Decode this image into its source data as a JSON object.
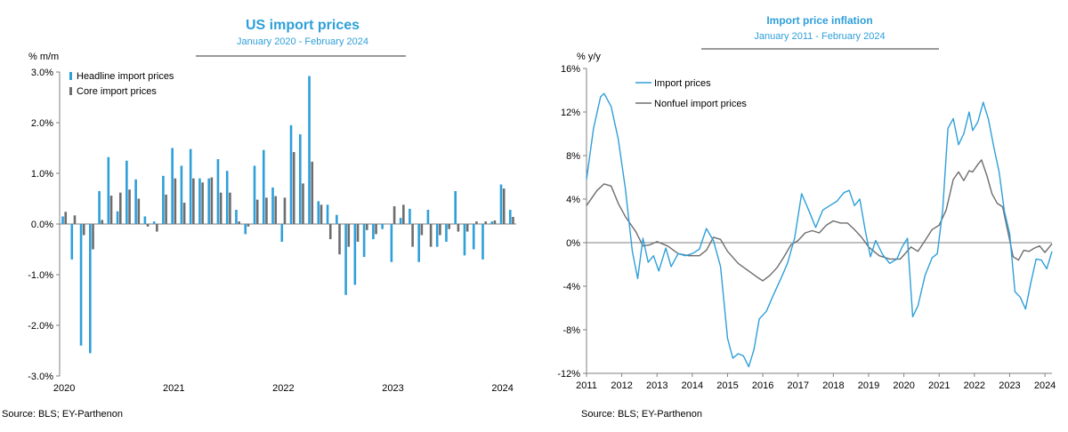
{
  "colors": {
    "headline": "#2e9fd9",
    "core": "#6d6d6d",
    "title": "#2e9fd9",
    "axis": "#808080"
  },
  "left": {
    "title": "US import prices",
    "subtitle": "January 2020 - February 2024",
    "unit_label": "% m/m",
    "source": "Source: BLS; EY-Parthenon"
  },
  "right": {
    "title": "Import price inflation",
    "subtitle": "January 2011 - February 2024",
    "unit_label": "% y/y",
    "source": "Source: BLS; EY-Parthenon"
  },
  "chart_data": [
    {
      "type": "bar",
      "title": "US import prices",
      "subtitle": "January 2020 - February 2024",
      "ylabel": "% m/m",
      "ylim": [
        -3.0,
        3.0
      ],
      "yticks": [
        -3.0,
        -2.0,
        -1.0,
        0.0,
        1.0,
        2.0,
        3.0
      ],
      "ytick_labels": [
        "-3.0%",
        "-2.0%",
        "-1.0%",
        "0.0%",
        "1.0%",
        "2.0%",
        "3.0%"
      ],
      "xtick_labels": [
        "2020",
        "2021",
        "2022",
        "2023",
        "2024"
      ],
      "legend_position": "top-left",
      "categories": [
        "2020-01",
        "2020-02",
        "2020-03",
        "2020-04",
        "2020-05",
        "2020-06",
        "2020-07",
        "2020-08",
        "2020-09",
        "2020-10",
        "2020-11",
        "2020-12",
        "2021-01",
        "2021-02",
        "2021-03",
        "2021-04",
        "2021-05",
        "2021-06",
        "2021-07",
        "2021-08",
        "2021-09",
        "2021-10",
        "2021-11",
        "2021-12",
        "2022-01",
        "2022-02",
        "2022-03",
        "2022-04",
        "2022-05",
        "2022-06",
        "2022-07",
        "2022-08",
        "2022-09",
        "2022-10",
        "2022-11",
        "2022-12",
        "2023-01",
        "2023-02",
        "2023-03",
        "2023-04",
        "2023-05",
        "2023-06",
        "2023-07",
        "2023-08",
        "2023-09",
        "2023-10",
        "2023-11",
        "2023-12",
        "2024-01",
        "2024-02"
      ],
      "series": [
        {
          "name": "Headline import prices",
          "values": [
            0.15,
            -0.7,
            -2.4,
            -2.55,
            0.65,
            1.32,
            0.25,
            1.25,
            0.88,
            0.15,
            0.05,
            0.95,
            1.5,
            1.15,
            1.48,
            0.9,
            0.9,
            1.28,
            1.05,
            0.28,
            -0.2,
            1.15,
            1.46,
            0.72,
            -0.35,
            1.95,
            1.77,
            2.92,
            0.45,
            0.38,
            0.18,
            -1.4,
            -1.2,
            -0.65,
            -0.3,
            -0.1,
            -0.75,
            0.12,
            0.3,
            -0.75,
            0.28,
            -0.45,
            -0.35,
            0.65,
            -0.62,
            -0.5,
            -0.7,
            0.05,
            0.78,
            0.28
          ],
          "color": "#2e9fd9"
        },
        {
          "name": "Core import prices",
          "values": [
            0.24,
            0.17,
            -0.22,
            -0.5,
            0.08,
            0.56,
            0.62,
            0.68,
            0.5,
            -0.05,
            -0.15,
            0.58,
            0.9,
            0.42,
            0.9,
            0.82,
            0.92,
            0.62,
            0.62,
            0.05,
            -0.05,
            0.48,
            0.52,
            0.55,
            0.52,
            1.42,
            0.8,
            1.23,
            0.38,
            -0.3,
            -0.6,
            -0.45,
            -0.35,
            -0.12,
            -0.2,
            0.0,
            0.35,
            0.38,
            -0.45,
            -0.22,
            -0.45,
            -0.22,
            -0.1,
            -0.15,
            -0.15,
            0.05,
            0.05,
            0.07,
            0.7,
            0.14
          ],
          "color": "#6d6d6d"
        }
      ]
    },
    {
      "type": "line",
      "title": "Import price inflation",
      "subtitle": "January 2011 - February 2024",
      "ylabel": "% y/y",
      "ylim": [
        -12,
        16
      ],
      "yticks": [
        -12,
        -8,
        -4,
        0,
        4,
        8,
        12,
        16
      ],
      "ytick_labels": [
        "-12%",
        "-8%",
        "-4%",
        "0%",
        "4%",
        "8%",
        "12%",
        "16%"
      ],
      "xlim": [
        2011,
        2024.2
      ],
      "xtick_values": [
        2011,
        2012,
        2013,
        2014,
        2015,
        2016,
        2017,
        2018,
        2019,
        2020,
        2021,
        2022,
        2023,
        2024
      ],
      "xtick_labels": [
        "2011",
        "2012",
        "2013",
        "2014",
        "2015",
        "2016",
        "2017",
        "2018",
        "2019",
        "2020",
        "2021",
        "2022",
        "2023",
        "2024"
      ],
      "legend_position": "top-left",
      "series": [
        {
          "name": "Import prices",
          "color": "#2e9fd9",
          "points": [
            [
              2011.0,
              5.8
            ],
            [
              2011.2,
              10.5
            ],
            [
              2011.4,
              13.4
            ],
            [
              2011.5,
              13.7
            ],
            [
              2011.7,
              12.5
            ],
            [
              2011.9,
              9.5
            ],
            [
              2012.1,
              5.0
            ],
            [
              2012.3,
              -0.8
            ],
            [
              2012.45,
              -3.3
            ],
            [
              2012.6,
              0.4
            ],
            [
              2012.75,
              -1.8
            ],
            [
              2012.9,
              -1.2
            ],
            [
              2013.05,
              -2.6
            ],
            [
              2013.25,
              -0.5
            ],
            [
              2013.4,
              -2.2
            ],
            [
              2013.6,
              -1.0
            ],
            [
              2013.8,
              -1.2
            ],
            [
              2014.0,
              -1.0
            ],
            [
              2014.2,
              -0.6
            ],
            [
              2014.4,
              1.3
            ],
            [
              2014.6,
              0.2
            ],
            [
              2014.8,
              -2.2
            ],
            [
              2015.0,
              -8.8
            ],
            [
              2015.15,
              -10.6
            ],
            [
              2015.3,
              -10.2
            ],
            [
              2015.45,
              -10.4
            ],
            [
              2015.6,
              -11.4
            ],
            [
              2015.75,
              -9.8
            ],
            [
              2015.9,
              -7.0
            ],
            [
              2016.1,
              -6.3
            ],
            [
              2016.3,
              -4.8
            ],
            [
              2016.5,
              -3.4
            ],
            [
              2016.7,
              -1.9
            ],
            [
              2016.9,
              0.4
            ],
            [
              2017.1,
              4.5
            ],
            [
              2017.3,
              3.0
            ],
            [
              2017.5,
              1.4
            ],
            [
              2017.7,
              3.0
            ],
            [
              2017.9,
              3.4
            ],
            [
              2018.1,
              3.8
            ],
            [
              2018.3,
              4.6
            ],
            [
              2018.45,
              4.8
            ],
            [
              2018.6,
              3.4
            ],
            [
              2018.75,
              4.0
            ],
            [
              2018.9,
              1.2
            ],
            [
              2019.05,
              -1.3
            ],
            [
              2019.2,
              0.2
            ],
            [
              2019.4,
              -1.1
            ],
            [
              2019.6,
              -1.9
            ],
            [
              2019.8,
              -1.5
            ],
            [
              2019.95,
              -0.4
            ],
            [
              2020.1,
              0.4
            ],
            [
              2020.25,
              -6.8
            ],
            [
              2020.4,
              -5.8
            ],
            [
              2020.6,
              -3.0
            ],
            [
              2020.8,
              -1.4
            ],
            [
              2020.95,
              -1.0
            ],
            [
              2021.1,
              3.0
            ],
            [
              2021.25,
              10.5
            ],
            [
              2021.4,
              11.4
            ],
            [
              2021.55,
              9.0
            ],
            [
              2021.7,
              10.0
            ],
            [
              2021.85,
              12.0
            ],
            [
              2021.95,
              10.3
            ],
            [
              2022.1,
              11.1
            ],
            [
              2022.25,
              12.9
            ],
            [
              2022.4,
              11.3
            ],
            [
              2022.55,
              8.8
            ],
            [
              2022.7,
              6.5
            ],
            [
              2022.85,
              2.9
            ],
            [
              2023.0,
              0.8
            ],
            [
              2023.15,
              -4.5
            ],
            [
              2023.3,
              -5.0
            ],
            [
              2023.45,
              -6.1
            ],
            [
              2023.6,
              -3.7
            ],
            [
              2023.75,
              -1.5
            ],
            [
              2023.9,
              -1.6
            ],
            [
              2024.05,
              -2.4
            ],
            [
              2024.2,
              -0.8
            ]
          ]
        },
        {
          "name": "Nonfuel import prices",
          "color": "#6d6d6d",
          "points": [
            [
              2011.0,
              3.4
            ],
            [
              2011.3,
              4.8
            ],
            [
              2011.5,
              5.4
            ],
            [
              2011.7,
              5.2
            ],
            [
              2011.9,
              3.6
            ],
            [
              2012.1,
              2.4
            ],
            [
              2012.4,
              1.0
            ],
            [
              2012.6,
              -0.3
            ],
            [
              2012.8,
              -0.2
            ],
            [
              2013.0,
              0.1
            ],
            [
              2013.3,
              -0.3
            ],
            [
              2013.6,
              -1.0
            ],
            [
              2013.9,
              -1.2
            ],
            [
              2014.2,
              -1.2
            ],
            [
              2014.4,
              -0.7
            ],
            [
              2014.6,
              0.5
            ],
            [
              2014.8,
              0.3
            ],
            [
              2015.0,
              -0.8
            ],
            [
              2015.3,
              -1.9
            ],
            [
              2015.6,
              -2.6
            ],
            [
              2015.9,
              -3.3
            ],
            [
              2016.0,
              -3.5
            ],
            [
              2016.2,
              -3.0
            ],
            [
              2016.4,
              -2.3
            ],
            [
              2016.6,
              -1.3
            ],
            [
              2016.8,
              -0.2
            ],
            [
              2017.0,
              0.2
            ],
            [
              2017.2,
              0.9
            ],
            [
              2017.4,
              1.1
            ],
            [
              2017.6,
              0.9
            ],
            [
              2017.8,
              1.6
            ],
            [
              2018.0,
              2.0
            ],
            [
              2018.2,
              1.8
            ],
            [
              2018.4,
              1.8
            ],
            [
              2018.6,
              1.2
            ],
            [
              2018.8,
              0.5
            ],
            [
              2019.0,
              -0.4
            ],
            [
              2019.3,
              -1.2
            ],
            [
              2019.6,
              -1.5
            ],
            [
              2019.9,
              -1.5
            ],
            [
              2020.2,
              -0.4
            ],
            [
              2020.4,
              -0.8
            ],
            [
              2020.6,
              0.2
            ],
            [
              2020.8,
              1.2
            ],
            [
              2021.0,
              1.6
            ],
            [
              2021.2,
              3.0
            ],
            [
              2021.4,
              5.8
            ],
            [
              2021.55,
              6.5
            ],
            [
              2021.7,
              5.7
            ],
            [
              2021.85,
              6.6
            ],
            [
              2021.95,
              6.5
            ],
            [
              2022.1,
              7.2
            ],
            [
              2022.2,
              7.6
            ],
            [
              2022.35,
              6.2
            ],
            [
              2022.5,
              4.5
            ],
            [
              2022.65,
              3.6
            ],
            [
              2022.8,
              3.3
            ],
            [
              2022.95,
              1.0
            ],
            [
              2023.1,
              -1.3
            ],
            [
              2023.25,
              -1.6
            ],
            [
              2023.4,
              -0.7
            ],
            [
              2023.55,
              -0.8
            ],
            [
              2023.7,
              -0.5
            ],
            [
              2023.85,
              -0.3
            ],
            [
              2024.0,
              -0.9
            ],
            [
              2024.2,
              -0.1
            ]
          ]
        }
      ]
    }
  ]
}
